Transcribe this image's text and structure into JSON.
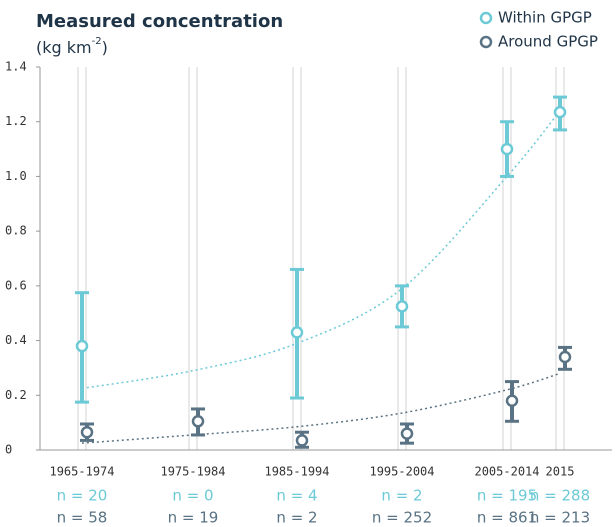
{
  "chart_data": {
    "type": "errorbar",
    "title": "Measured concentration",
    "subtitle_parts": [
      "(kg km",
      "-2",
      ")"
    ],
    "categories": [
      "1965-1974",
      "1975-1984",
      "1985-1994",
      "1995-2004",
      "2005-2014",
      "2015"
    ],
    "ylim": [
      0,
      1.4
    ],
    "yticks": [
      0,
      0.2,
      0.4,
      0.6,
      0.8,
      {
        "value": 1,
        "label": "1.0"
      },
      1.2,
      1.4
    ],
    "legend": "top-right",
    "series": [
      {
        "name": "Within GPGP",
        "color": "#6ccad6",
        "values": [
          0.38,
          null,
          0.43,
          0.525,
          1.1,
          1.235
        ],
        "low": [
          0.175,
          null,
          0.19,
          0.45,
          1.0,
          1.17
        ],
        "high": [
          0.575,
          null,
          0.66,
          0.6,
          1.2,
          1.29
        ],
        "trend": [
          0.225,
          0.29,
          0.39,
          0.59,
          1.0,
          1.24
        ],
        "n_labels": [
          "n = 20",
          "n = 0",
          "n = 4",
          "n = 2",
          "n = 195",
          "n = 288"
        ]
      },
      {
        "name": "Around GPGP",
        "color": "#5a7384",
        "values": [
          0.065,
          0.105,
          0.035,
          0.06,
          0.18,
          0.34
        ],
        "low": [
          0.035,
          0.055,
          0.01,
          0.025,
          0.105,
          0.295
        ],
        "high": [
          0.095,
          0.15,
          0.065,
          0.095,
          0.25,
          0.375
        ],
        "trend": [
          0.025,
          0.055,
          0.085,
          0.135,
          0.22,
          0.28
        ],
        "n_labels": [
          "n = 58",
          "n = 19",
          "n = 2",
          "n = 252",
          "n = 861",
          "n = 213"
        ]
      }
    ]
  }
}
